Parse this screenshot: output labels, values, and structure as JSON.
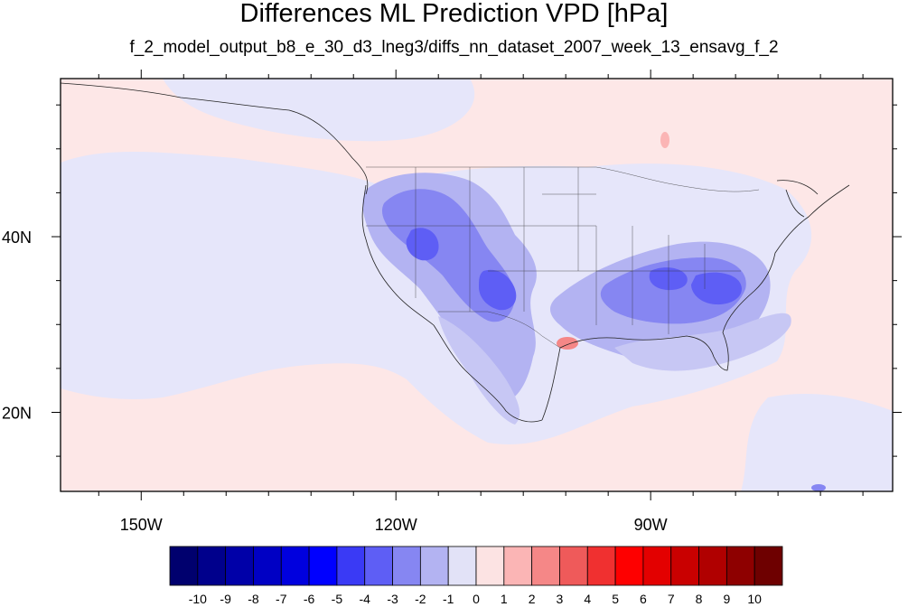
{
  "title": "Differences ML Prediction VPD [hPa]",
  "subtitle": "f_2_model_output_b8_e_30_d3_lneg3/diffs_nn_dataset_2007_week_13_ensavg_f_2",
  "lat_labels": [
    {
      "lat": 40,
      "text": "40N"
    },
    {
      "lat": 20,
      "text": "20N"
    }
  ],
  "lon_labels": [
    {
      "lon": -150,
      "text": "150W"
    },
    {
      "lon": -120,
      "text": "120W"
    },
    {
      "lon": -90,
      "text": "90W"
    }
  ],
  "map_extent": {
    "lon_min": -159.5,
    "lon_max": -61.5,
    "lat_min": 11,
    "lat_max": 58
  },
  "colorbar": {
    "labels": [
      "-10",
      "-9",
      "-8",
      "-7",
      "-6",
      "-5",
      "-4",
      "-3",
      "-2",
      "-1",
      "0",
      "1",
      "2",
      "3",
      "4",
      "5",
      "6",
      "7",
      "8",
      "9",
      "10"
    ],
    "colors": [
      "#00006e",
      "#00008c",
      "#0000a8",
      "#0000c4",
      "#0000de",
      "#0000ff",
      "#3a3af5",
      "#5e5ef5",
      "#8686f2",
      "#b3b3f2",
      "#e2e2f7",
      "#fce3e3",
      "#fbb5b5",
      "#f58787",
      "#ef5a5a",
      "#f03030",
      "#fe0000",
      "#e30000",
      "#c90000",
      "#b00000",
      "#8e0000",
      "#6e0000"
    ]
  },
  "colors": {
    "background_positive": "#fde7e7",
    "background_negative": "#e6e6fa"
  }
}
